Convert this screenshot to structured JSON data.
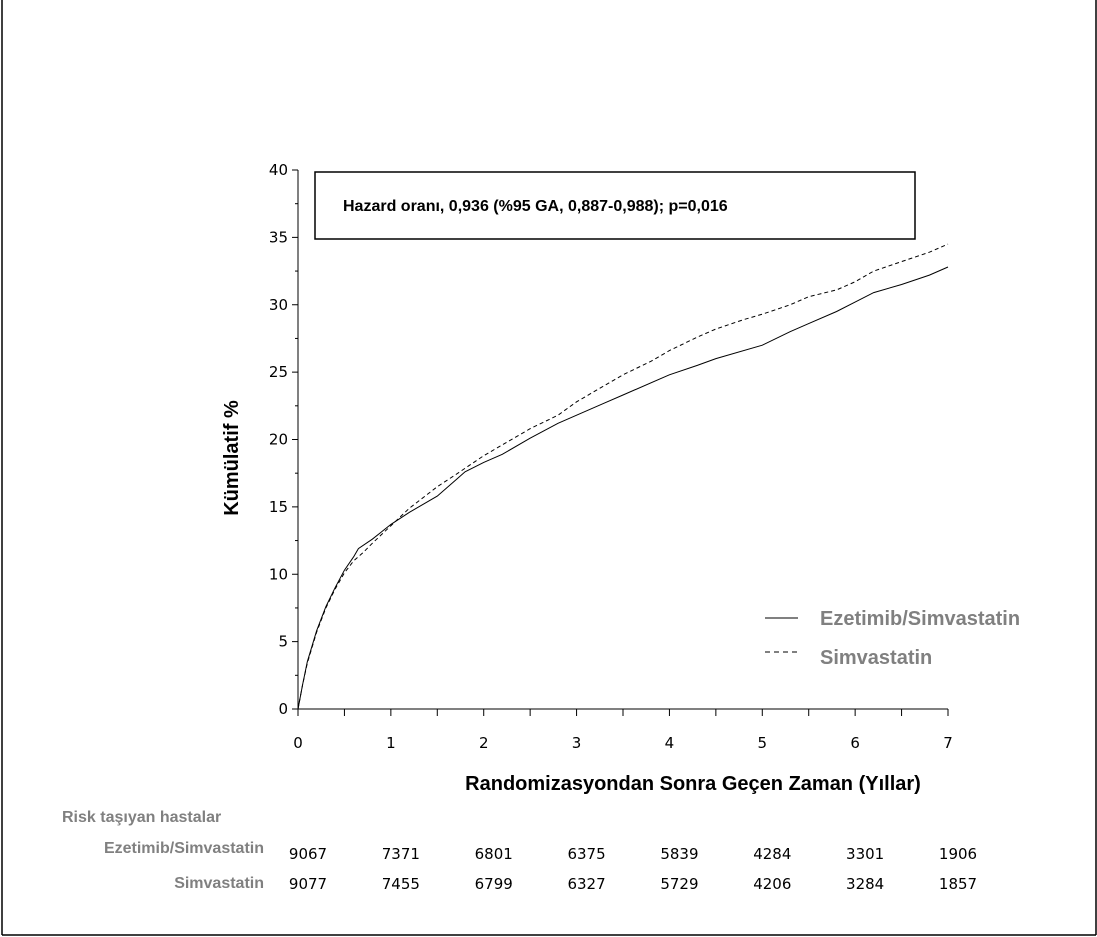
{
  "chart_data": {
    "type": "line",
    "ylabel": "Kümülatif %",
    "xlabel": "Randomizasyondan Sonra Geçen Zaman (Yıllar)",
    "xlim": [
      0,
      7
    ],
    "ylim": [
      0,
      40
    ],
    "x_ticks": [
      "0",
      "1",
      "2",
      "3",
      "4",
      "5",
      "6",
      "7"
    ],
    "y_ticks": [
      "0",
      "5",
      "10",
      "15",
      "20",
      "25",
      "30",
      "35",
      "40"
    ],
    "annotation": "Hazard oranı, 0,936 (%95 GA, 0,887-0,988); p=0,016",
    "legend_position": "bottom-right",
    "grid": false,
    "series": [
      {
        "name": "Ezetimib/Simvastatin",
        "line_style": "solid",
        "x": [
          0,
          0.05,
          0.1,
          0.2,
          0.3,
          0.4,
          0.5,
          0.6,
          0.65,
          0.8,
          1.0,
          1.2,
          1.5,
          1.7,
          1.8,
          2.0,
          2.2,
          2.5,
          2.8,
          3.0,
          3.3,
          3.5,
          4.0,
          4.3,
          4.5,
          5.0,
          5.3,
          5.5,
          5.8,
          6.0,
          6.2,
          6.5,
          6.8,
          7.0
        ],
        "y": [
          0,
          1.8,
          3.5,
          5.8,
          7.6,
          9.0,
          10.3,
          11.3,
          11.9,
          12.6,
          13.7,
          14.6,
          15.8,
          17.0,
          17.6,
          18.3,
          18.9,
          20.1,
          21.2,
          21.8,
          22.7,
          23.3,
          24.8,
          25.5,
          26.0,
          27.0,
          28.0,
          28.6,
          29.5,
          30.2,
          30.9,
          31.5,
          32.2,
          32.8
        ]
      },
      {
        "name": "Simvastatin",
        "line_style": "dashed",
        "x": [
          0,
          0.05,
          0.1,
          0.2,
          0.3,
          0.4,
          0.5,
          0.6,
          0.7,
          0.8,
          1.0,
          1.2,
          1.5,
          1.7,
          2.0,
          2.2,
          2.5,
          2.8,
          3.0,
          3.3,
          3.5,
          3.8,
          4.0,
          4.3,
          4.5,
          4.8,
          5.0,
          5.3,
          5.5,
          5.8,
          6.0,
          6.2,
          6.5,
          6.8,
          7.0
        ],
        "y": [
          0,
          1.8,
          3.4,
          5.7,
          7.5,
          8.9,
          10.1,
          11.0,
          11.6,
          12.3,
          13.6,
          14.9,
          16.5,
          17.4,
          18.8,
          19.6,
          20.8,
          21.8,
          22.8,
          24.0,
          24.8,
          25.8,
          26.6,
          27.6,
          28.2,
          28.9,
          29.3,
          30.0,
          30.6,
          31.1,
          31.7,
          32.5,
          33.2,
          33.9,
          34.5
        ]
      }
    ],
    "risk_table": {
      "title": "Risk taşıyan hastalar",
      "rows": [
        {
          "label": "Ezetimib/Simvastatin",
          "values": [
            "9067",
            "7371",
            "6801",
            "6375",
            "5839",
            "4284",
            "3301",
            "1906"
          ]
        },
        {
          "label": "Simvastatin",
          "values": [
            "9077",
            "7455",
            "6799",
            "6327",
            "5729",
            "4206",
            "3284",
            "1857"
          ]
        }
      ]
    }
  },
  "colors": {
    "axis": "#000000",
    "series_line": "#000000",
    "legend_text": "#808080",
    "risk_label_text": "#808080"
  }
}
